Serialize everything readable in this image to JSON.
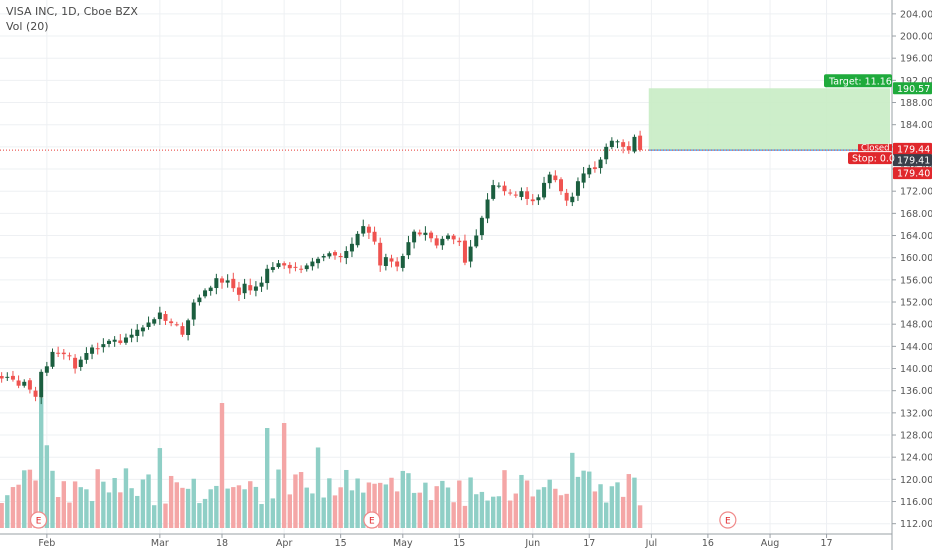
{
  "legend": {
    "title": "VISA INC, 1D, Cboe BZX",
    "volume": "Vol (20)"
  },
  "colors": {
    "up": "#1b5e3f",
    "down": "#ef5350",
    "vol_up": "#8fcfc6",
    "vol_down": "#f4a6a6",
    "target_zone": "#c8ecc4",
    "target_badge": "#1faa3c",
    "stop_badge": "#e0272c",
    "grid": "#eef0f3"
  },
  "price_badges": {
    "target_value": "190.57",
    "target_label": "Target: 11.16",
    "closed_label": "Closed",
    "close_value": "179.44",
    "current_value": "179.41",
    "stop_label": "Stop: 0.0",
    "stop_value": "179.40"
  },
  "earnings_marker": "E",
  "chart_data": {
    "type": "candlestick",
    "title": "VISA INC, 1D, Cboe BZX",
    "y_axis": {
      "ticks": [
        112,
        116,
        120,
        124,
        128,
        132,
        136,
        140,
        144,
        148,
        152,
        156,
        160,
        164,
        168,
        172,
        176,
        180,
        184,
        188,
        192,
        196,
        200,
        204
      ],
      "labels": [
        "112.00",
        "116.00",
        "120.00",
        "124.00",
        "128.00",
        "132.00",
        "136.00",
        "140.00",
        "144.00",
        "148.00",
        "152.00",
        "156.00",
        "160.00",
        "164.00",
        "168.00",
        "172.00",
        "176.00",
        "180.00",
        "184.00",
        "188.00",
        "192.00",
        "196.00",
        "200.00",
        "204.00"
      ],
      "ylim": [
        110.5,
        206.5
      ],
      "position": "right"
    },
    "x_axis": {
      "labels": [
        "Feb",
        "Mar",
        "18",
        "Apr",
        "15",
        "May",
        "15",
        "Jun",
        "17",
        "Jul",
        "16",
        "Aug",
        "17"
      ],
      "label_bars": [
        9,
        29,
        40,
        51,
        61,
        72,
        82,
        95,
        105,
        116,
        126,
        137,
        147
      ]
    },
    "bars_visible": 131,
    "closes": [
      138.8,
      138.2,
      138.5,
      138.0,
      136.9,
      137.6,
      136.2,
      134.9,
      139.4,
      140.4,
      143.0,
      142.8,
      142.6,
      142.2,
      140.0,
      141.6,
      142.8,
      143.8,
      143.6,
      144.4,
      145.0,
      145.2,
      144.6,
      145.6,
      146.1,
      147.0,
      147.4,
      148.3,
      148.9,
      150.1,
      148.6,
      148.2,
      147.9,
      146.1,
      148.7,
      151.9,
      152.8,
      154.1,
      154.6,
      156.3,
      155.5,
      155.9,
      154.5,
      153.3,
      155.3,
      154.1,
      154.8,
      155.5,
      158.0,
      158.3,
      159.0,
      158.6,
      158.1,
      158.2,
      157.9,
      158.6,
      159.3,
      159.8,
      160.3,
      160.8,
      160.4,
      160.1,
      161.2,
      162.5,
      164.3,
      165.7,
      164.5,
      162.9,
      158.6,
      160.1,
      159.3,
      158.4,
      160.3,
      162.8,
      164.7,
      164.2,
      164.5,
      163.5,
      162.2,
      163.4,
      164.0,
      163.3,
      162.8,
      159.1,
      162.0,
      164.0,
      167.2,
      170.5,
      173.1,
      173.0,
      172.0,
      171.6,
      171.2,
      172.0,
      170.6,
      170.2,
      170.9,
      173.5,
      175.0,
      174.0,
      172.0,
      170.3,
      171.0,
      173.8,
      175.2,
      176.2,
      176.0,
      177.7,
      180.0,
      181.1,
      181.0,
      180.0,
      179.4,
      181.8,
      179.44
    ],
    "volume_label": "Vol (20)",
    "target": {
      "price": 190.57,
      "label": "Target: 11.16"
    },
    "stop": {
      "price": 179.4,
      "label": "Stop: 0.0"
    },
    "last_price": 179.41,
    "earnings_bars": [
      7,
      66,
      129
    ]
  }
}
